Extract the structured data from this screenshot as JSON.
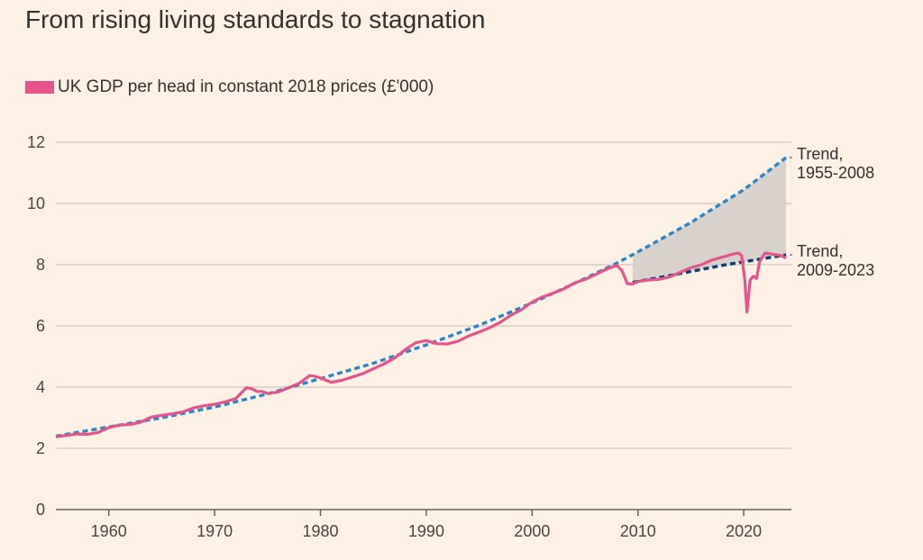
{
  "chart_data": {
    "type": "line",
    "title": "From rising living standards to stagnation",
    "xlabel": "",
    "ylabel": "",
    "xlim": [
      1955,
      2024.5
    ],
    "ylim": [
      0,
      12
    ],
    "x_ticks": [
      "1960",
      "1970",
      "1980",
      "1990",
      "2000",
      "2010",
      "2020"
    ],
    "y_ticks": [
      "0",
      "2",
      "4",
      "6",
      "8",
      "10",
      "12"
    ],
    "grid": true,
    "legend_position": "top-left",
    "series": [
      {
        "name": "UK GDP per head in constant 2018 prices (£'000)",
        "color": "#e7538b",
        "style": "solid",
        "points": [
          [
            1955,
            2.38
          ],
          [
            1956,
            2.42
          ],
          [
            1957,
            2.47
          ],
          [
            1958,
            2.46
          ],
          [
            1959,
            2.52
          ],
          [
            1960,
            2.68
          ],
          [
            1961,
            2.76
          ],
          [
            1962,
            2.78
          ],
          [
            1963,
            2.85
          ],
          [
            1964,
            3.02
          ],
          [
            1965,
            3.08
          ],
          [
            1966,
            3.13
          ],
          [
            1967,
            3.19
          ],
          [
            1968,
            3.32
          ],
          [
            1969,
            3.39
          ],
          [
            1970,
            3.44
          ],
          [
            1971,
            3.52
          ],
          [
            1972,
            3.63
          ],
          [
            1973,
            3.98
          ],
          [
            1973.5,
            3.95
          ],
          [
            1974,
            3.86
          ],
          [
            1974.5,
            3.86
          ],
          [
            1975,
            3.79
          ],
          [
            1976,
            3.84
          ],
          [
            1977,
            3.98
          ],
          [
            1978,
            4.13
          ],
          [
            1979,
            4.38
          ],
          [
            1979.5,
            4.35
          ],
          [
            1980,
            4.3
          ],
          [
            1981,
            4.16
          ],
          [
            1982,
            4.22
          ],
          [
            1983,
            4.33
          ],
          [
            1984,
            4.44
          ],
          [
            1985,
            4.6
          ],
          [
            1986,
            4.76
          ],
          [
            1987,
            4.95
          ],
          [
            1988,
            5.22
          ],
          [
            1989,
            5.45
          ],
          [
            1990,
            5.52
          ],
          [
            1991,
            5.42
          ],
          [
            1992,
            5.41
          ],
          [
            1993,
            5.5
          ],
          [
            1994,
            5.67
          ],
          [
            1995,
            5.8
          ],
          [
            1996,
            5.94
          ],
          [
            1997,
            6.12
          ],
          [
            1998,
            6.35
          ],
          [
            1999,
            6.53
          ],
          [
            2000,
            6.78
          ],
          [
            2001,
            6.95
          ],
          [
            2002,
            7.07
          ],
          [
            2003,
            7.21
          ],
          [
            2004,
            7.4
          ],
          [
            2005,
            7.52
          ],
          [
            2006,
            7.68
          ],
          [
            2007,
            7.85
          ],
          [
            2008,
            7.98
          ],
          [
            2008.5,
            7.8
          ],
          [
            2009,
            7.38
          ],
          [
            2009.5,
            7.37
          ],
          [
            2010,
            7.45
          ],
          [
            2011,
            7.5
          ],
          [
            2012,
            7.52
          ],
          [
            2013,
            7.6
          ],
          [
            2014,
            7.75
          ],
          [
            2015,
            7.9
          ],
          [
            2016,
            8.0
          ],
          [
            2017,
            8.15
          ],
          [
            2018,
            8.25
          ],
          [
            2019,
            8.35
          ],
          [
            2019.5,
            8.38
          ],
          [
            2019.8,
            8.3
          ],
          [
            2020.1,
            7.5
          ],
          [
            2020.3,
            6.45
          ],
          [
            2020.6,
            7.5
          ],
          [
            2020.9,
            7.62
          ],
          [
            2021.2,
            7.55
          ],
          [
            2021.5,
            8.1
          ],
          [
            2022,
            8.38
          ],
          [
            2022.5,
            8.36
          ],
          [
            2023,
            8.33
          ],
          [
            2023.5,
            8.3
          ],
          [
            2024,
            8.22
          ]
        ]
      },
      {
        "name": "Trend, 1955-2008",
        "color": "#2a87c4",
        "style": "dashed",
        "points": [
          [
            1955,
            2.4
          ],
          [
            1960,
            2.7
          ],
          [
            1965,
            3.0
          ],
          [
            1970,
            3.35
          ],
          [
            1975,
            3.78
          ],
          [
            1980,
            4.28
          ],
          [
            1985,
            4.78
          ],
          [
            1990,
            5.38
          ],
          [
            1995,
            6.02
          ],
          [
            2000,
            6.75
          ],
          [
            2005,
            7.55
          ],
          [
            2008,
            8.05
          ],
          [
            2010,
            8.42
          ],
          [
            2015,
            9.38
          ],
          [
            2020,
            10.45
          ],
          [
            2024,
            11.5
          ]
        ]
      },
      {
        "name": "Trend, 2009-2023",
        "color": "#0f3b74",
        "style": "dashed",
        "points": [
          [
            2009.5,
            7.42
          ],
          [
            2012,
            7.58
          ],
          [
            2015,
            7.78
          ],
          [
            2018,
            7.98
          ],
          [
            2021,
            8.15
          ],
          [
            2024,
            8.32
          ]
        ]
      }
    ],
    "shaded_band": {
      "between": [
        "Trend, 1955-2008",
        "Trend, 2009-2023"
      ],
      "from_x": 2009.5,
      "color": "#d7cfc9"
    },
    "annotations": [
      {
        "lines": [
          "Trend,",
          "1955-2008"
        ],
        "target": "Trend, 1955-2008"
      },
      {
        "lines": [
          "Trend,",
          "2009-2023"
        ],
        "target": "Trend, 2009-2023"
      }
    ]
  }
}
